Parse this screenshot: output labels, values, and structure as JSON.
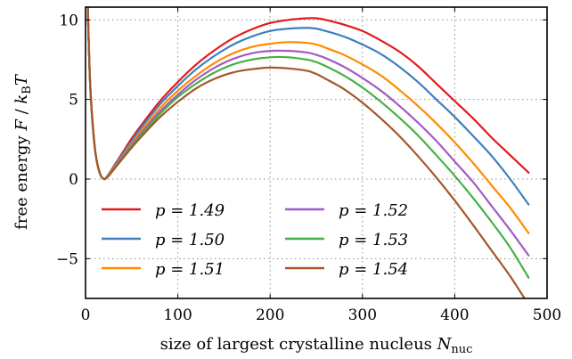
{
  "chart_data": {
    "type": "line",
    "xlabel": "size of largest crystalline nucleus N_nuc",
    "ylabel": "free energy F / k_B T",
    "xlim": [
      0,
      500
    ],
    "ylim": [
      -7.5,
      10.8
    ],
    "xticks": [
      0,
      100,
      200,
      300,
      400,
      500
    ],
    "yticks": [
      -5,
      0,
      5,
      10
    ],
    "xtick_labels": [
      "0",
      "100",
      "200",
      "300",
      "400",
      "500"
    ],
    "ytick_labels": [
      "−5",
      "0",
      "5",
      "10"
    ],
    "grid": true,
    "legend_placement": "lower-left",
    "legend_columns": 2,
    "x": [
      2,
      5,
      10,
      15,
      20,
      25,
      30,
      40,
      50,
      60,
      80,
      100,
      120,
      140,
      160,
      180,
      200,
      220,
      240,
      250,
      260,
      280,
      300,
      320,
      340,
      360,
      380,
      400,
      420,
      440,
      460,
      480
    ],
    "series": [
      {
        "name": "p = 1.49",
        "color": "#e31a1c",
        "values": [
          11.8,
          6.0,
          2.0,
          0.45,
          0.0,
          0.3,
          0.75,
          1.65,
          2.55,
          3.35,
          4.85,
          6.1,
          7.2,
          8.1,
          8.85,
          9.4,
          9.8,
          10.0,
          10.1,
          10.1,
          10.0,
          9.7,
          9.3,
          8.7,
          8.0,
          7.1,
          6.0,
          4.9,
          3.8,
          2.6,
          1.5,
          0.4
        ]
      },
      {
        "name": "p = 1.50",
        "color": "#3f7fbf",
        "values": [
          11.8,
          6.0,
          2.0,
          0.45,
          0.0,
          0.28,
          0.7,
          1.55,
          2.4,
          3.2,
          4.65,
          5.85,
          6.9,
          7.75,
          8.45,
          8.95,
          9.3,
          9.45,
          9.5,
          9.45,
          9.3,
          8.95,
          8.45,
          7.85,
          7.05,
          6.1,
          5.0,
          3.9,
          2.7,
          1.45,
          0.0,
          -1.6
        ]
      },
      {
        "name": "p = 1.51",
        "color": "#ff8c00",
        "values": [
          11.8,
          6.0,
          2.0,
          0.45,
          0.0,
          0.25,
          0.65,
          1.45,
          2.25,
          3.0,
          4.4,
          5.55,
          6.5,
          7.3,
          7.9,
          8.3,
          8.5,
          8.6,
          8.55,
          8.45,
          8.25,
          7.8,
          7.2,
          6.5,
          5.6,
          4.6,
          3.5,
          2.3,
          1.0,
          -0.4,
          -1.8,
          -3.4
        ]
      },
      {
        "name": "p = 1.52",
        "color": "#a25cc2",
        "values": [
          11.8,
          6.0,
          2.0,
          0.45,
          0.0,
          0.23,
          0.6,
          1.4,
          2.15,
          2.85,
          4.2,
          5.3,
          6.25,
          7.0,
          7.55,
          7.9,
          8.05,
          8.05,
          7.95,
          7.8,
          7.6,
          7.05,
          6.35,
          5.55,
          4.6,
          3.55,
          2.4,
          1.1,
          -0.2,
          -1.7,
          -3.2,
          -4.8
        ]
      },
      {
        "name": "p = 1.53",
        "color": "#45b045",
        "values": [
          11.8,
          6.0,
          2.0,
          0.45,
          0.0,
          0.22,
          0.58,
          1.33,
          2.05,
          2.75,
          4.05,
          5.15,
          6.0,
          6.7,
          7.2,
          7.5,
          7.65,
          7.65,
          7.5,
          7.35,
          7.1,
          6.5,
          5.75,
          4.85,
          3.85,
          2.75,
          1.5,
          0.2,
          -1.2,
          -2.7,
          -4.3,
          -6.2
        ]
      },
      {
        "name": "p = 1.54",
        "color": "#a5562a",
        "values": [
          11.8,
          6.0,
          2.0,
          0.45,
          0.0,
          0.2,
          0.55,
          1.27,
          1.97,
          2.63,
          3.85,
          4.85,
          5.7,
          6.3,
          6.7,
          6.9,
          7.0,
          6.95,
          6.8,
          6.6,
          6.3,
          5.65,
          4.8,
          3.8,
          2.7,
          1.45,
          0.1,
          -1.35,
          -2.9,
          -4.5,
          -6.1,
          -7.9
        ]
      }
    ]
  }
}
